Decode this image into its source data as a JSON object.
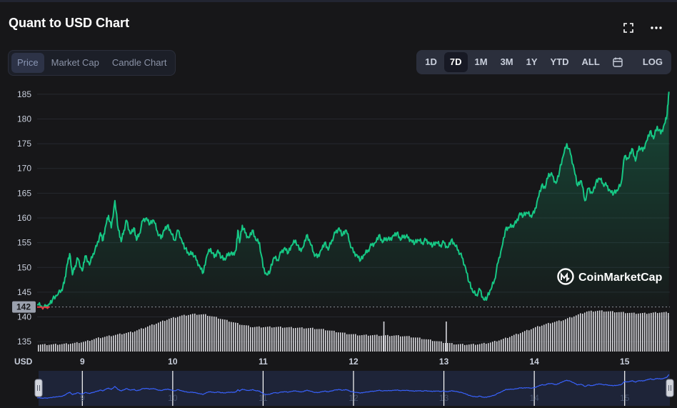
{
  "header": {
    "title": "Quant to USD Chart",
    "fullscreen_icon": "fullscreen-icon",
    "more_icon": "more-horizontal-icon"
  },
  "tabs": [
    {
      "label": "Price",
      "active": true
    },
    {
      "label": "Market Cap",
      "active": false
    },
    {
      "label": "Candle Chart",
      "active": false
    }
  ],
  "ranges": [
    {
      "label": "1D",
      "active": false
    },
    {
      "label": "7D",
      "active": true
    },
    {
      "label": "1M",
      "active": false
    },
    {
      "label": "3M",
      "active": false
    },
    {
      "label": "1Y",
      "active": false
    },
    {
      "label": "YTD",
      "active": false
    },
    {
      "label": "ALL",
      "active": false
    }
  ],
  "calendar_icon": "calendar-icon",
  "log_label": "LOG",
  "watermark": "CoinMarketCap",
  "colors": {
    "up": "#16c784",
    "down": "#ea3943",
    "navigator": "#3861fb",
    "volume": "#d8d8dd",
    "background": "#171719"
  },
  "chart_data": {
    "type": "line",
    "ylabel": "USD",
    "ylim": [
      133,
      187
    ],
    "yticks": [
      135,
      140,
      145,
      150,
      155,
      160,
      165,
      170,
      175,
      180,
      185
    ],
    "xticks": [
      "9",
      "10",
      "11",
      "12",
      "13",
      "14",
      "15"
    ],
    "xlim": [
      8.5,
      15.5
    ],
    "baseline_value": 142,
    "baseline_label": "142",
    "grid": true,
    "series": [
      {
        "values": [
          [
            8.5,
            142.5
          ],
          [
            8.55,
            142.2
          ],
          [
            8.6,
            141.9
          ],
          [
            8.63,
            142.6
          ],
          [
            8.67,
            143.5
          ],
          [
            8.72,
            144.3
          ],
          [
            8.77,
            145.5
          ],
          [
            8.8,
            146.8
          ],
          [
            8.83,
            150.5
          ],
          [
            8.86,
            152.8
          ],
          [
            8.89,
            148.5
          ],
          [
            8.92,
            150.3
          ],
          [
            8.95,
            151.8
          ],
          [
            9.0,
            149.3
          ],
          [
            9.03,
            152.3
          ],
          [
            9.08,
            150.5
          ],
          [
            9.12,
            152.8
          ],
          [
            9.16,
            154.3
          ],
          [
            9.2,
            157.0
          ],
          [
            9.23,
            155.5
          ],
          [
            9.26,
            158.5
          ],
          [
            9.29,
            160.5
          ],
          [
            9.32,
            158.0
          ],
          [
            9.36,
            163.5
          ],
          [
            9.4,
            157.5
          ],
          [
            9.43,
            155.2
          ],
          [
            9.46,
            157.5
          ],
          [
            9.49,
            159.5
          ],
          [
            9.53,
            156.8
          ],
          [
            9.57,
            158.0
          ],
          [
            9.6,
            155.5
          ],
          [
            9.63,
            156.8
          ],
          [
            9.67,
            159.5
          ],
          [
            9.71,
            160.0
          ],
          [
            9.75,
            158.8
          ],
          [
            9.79,
            159.5
          ],
          [
            9.83,
            157.3
          ],
          [
            9.87,
            155.8
          ],
          [
            9.9,
            157.5
          ],
          [
            9.94,
            158.5
          ],
          [
            9.98,
            157.0
          ],
          [
            10.02,
            155.5
          ],
          [
            10.06,
            157.5
          ],
          [
            10.1,
            155.5
          ],
          [
            10.14,
            153.8
          ],
          [
            10.18,
            152.5
          ],
          [
            10.22,
            153.0
          ],
          [
            10.26,
            151.5
          ],
          [
            10.3,
            150.2
          ],
          [
            10.34,
            149.0
          ],
          [
            10.38,
            152.5
          ],
          [
            10.42,
            153.8
          ],
          [
            10.46,
            152.0
          ],
          [
            10.5,
            153.5
          ],
          [
            10.54,
            152.0
          ],
          [
            10.58,
            151.5
          ],
          [
            10.62,
            153.0
          ],
          [
            10.66,
            152.5
          ],
          [
            10.7,
            153.5
          ],
          [
            10.72,
            157.5
          ],
          [
            10.74,
            155.0
          ],
          [
            10.77,
            158.5
          ],
          [
            10.8,
            157.0
          ],
          [
            10.84,
            156.0
          ],
          [
            10.88,
            157.5
          ],
          [
            10.92,
            155.5
          ],
          [
            10.96,
            155.0
          ],
          [
            11.0,
            150.0
          ],
          [
            11.04,
            148.5
          ],
          [
            11.08,
            149.5
          ],
          [
            11.12,
            152.0
          ],
          [
            11.16,
            151.5
          ],
          [
            11.2,
            153.0
          ],
          [
            11.24,
            154.0
          ],
          [
            11.28,
            153.0
          ],
          [
            11.32,
            154.5
          ],
          [
            11.36,
            155.5
          ],
          [
            11.4,
            153.5
          ],
          [
            11.44,
            154.0
          ],
          [
            11.48,
            156.5
          ],
          [
            11.52,
            155.0
          ],
          [
            11.56,
            153.0
          ],
          [
            11.6,
            152.0
          ],
          [
            11.64,
            153.5
          ],
          [
            11.68,
            155.0
          ],
          [
            11.72,
            153.5
          ],
          [
            11.76,
            155.5
          ],
          [
            11.8,
            157.0
          ],
          [
            11.84,
            158.0
          ],
          [
            11.88,
            156.5
          ],
          [
            11.92,
            157.5
          ],
          [
            11.96,
            155.0
          ],
          [
            12.0,
            153.0
          ],
          [
            12.04,
            152.5
          ],
          [
            12.08,
            151.5
          ],
          [
            12.12,
            152.5
          ],
          [
            12.16,
            153.5
          ],
          [
            12.2,
            154.5
          ],
          [
            12.24,
            155.0
          ],
          [
            12.28,
            156.5
          ],
          [
            12.32,
            155.0
          ],
          [
            12.36,
            156.0
          ],
          [
            12.4,
            155.5
          ],
          [
            12.44,
            156.5
          ],
          [
            12.48,
            157.0
          ],
          [
            12.52,
            155.5
          ],
          [
            12.56,
            156.5
          ],
          [
            12.6,
            156.0
          ],
          [
            12.64,
            155.5
          ],
          [
            12.68,
            155.0
          ],
          [
            12.72,
            155.5
          ],
          [
            12.76,
            155.0
          ],
          [
            12.8,
            155.5
          ],
          [
            12.84,
            155.0
          ],
          [
            12.88,
            154.5
          ],
          [
            12.92,
            155.0
          ],
          [
            12.96,
            154.5
          ],
          [
            13.0,
            155.0
          ],
          [
            13.04,
            154.0
          ],
          [
            13.08,
            155.5
          ],
          [
            13.12,
            154.5
          ],
          [
            13.16,
            153.5
          ],
          [
            13.2,
            152.0
          ],
          [
            13.24,
            150.0
          ],
          [
            13.28,
            147.0
          ],
          [
            13.32,
            145.0
          ],
          [
            13.36,
            144.5
          ],
          [
            13.4,
            145.5
          ],
          [
            13.44,
            143.5
          ],
          [
            13.48,
            144.0
          ],
          [
            13.52,
            145.5
          ],
          [
            13.56,
            147.5
          ],
          [
            13.6,
            151.0
          ],
          [
            13.64,
            154.0
          ],
          [
            13.68,
            157.5
          ],
          [
            13.72,
            158.0
          ],
          [
            13.76,
            158.5
          ],
          [
            13.8,
            159.0
          ],
          [
            13.84,
            161.0
          ],
          [
            13.88,
            160.5
          ],
          [
            13.92,
            161.0
          ],
          [
            13.96,
            160.5
          ],
          [
            14.0,
            161.0
          ],
          [
            14.04,
            164.0
          ],
          [
            14.08,
            166.5
          ],
          [
            14.12,
            166.0
          ],
          [
            14.16,
            169.0
          ],
          [
            14.2,
            168.5
          ],
          [
            14.24,
            167.0
          ],
          [
            14.28,
            169.5
          ],
          [
            14.32,
            172.5
          ],
          [
            14.36,
            175.0
          ],
          [
            14.4,
            173.0
          ],
          [
            14.44,
            170.0
          ],
          [
            14.48,
            166.5
          ],
          [
            14.52,
            167.5
          ],
          [
            14.56,
            163.5
          ],
          [
            14.6,
            166.0
          ],
          [
            14.64,
            165.0
          ],
          [
            14.68,
            167.0
          ],
          [
            14.72,
            168.0
          ],
          [
            14.76,
            167.0
          ],
          [
            14.8,
            166.5
          ],
          [
            14.84,
            165.5
          ],
          [
            14.88,
            165.0
          ],
          [
            14.92,
            165.5
          ],
          [
            14.96,
            167.0
          ],
          [
            15.0,
            172.5
          ],
          [
            15.04,
            172.0
          ],
          [
            15.08,
            174.0
          ],
          [
            15.12,
            171.5
          ],
          [
            15.16,
            174.5
          ],
          [
            15.2,
            173.5
          ],
          [
            15.24,
            175.5
          ],
          [
            15.28,
            177.5
          ],
          [
            15.32,
            176.0
          ],
          [
            15.36,
            178.5
          ],
          [
            15.4,
            177.0
          ],
          [
            15.44,
            179.0
          ],
          [
            15.47,
            181.0
          ],
          [
            15.49,
            185.5
          ]
        ]
      }
    ],
    "volume": {
      "x_start": 8.5,
      "x_end": 15.5,
      "samples": [
        0.15,
        0.15,
        0.16,
        0.18,
        0.22,
        0.3,
        0.35,
        0.4,
        0.45,
        0.55,
        0.65,
        0.75,
        0.82,
        0.86,
        0.85,
        0.78,
        0.7,
        0.62,
        0.56,
        0.56,
        0.56,
        0.55,
        0.54,
        0.53,
        0.5,
        0.45,
        0.4,
        0.37,
        0.37,
        0.36,
        0.36,
        0.34,
        0.3,
        0.25,
        0.2,
        0.16,
        0.15,
        0.16,
        0.2,
        0.28,
        0.38,
        0.48,
        0.58,
        0.66,
        0.72,
        0.82,
        0.92,
        0.94,
        0.92,
        0.9,
        0.88,
        0.88,
        0.9,
        0.9
      ],
      "spikes": [
        [
          12.33,
          0.7
        ],
        [
          13.02,
          0.7
        ]
      ]
    },
    "navigator": {
      "xticks": [
        "9",
        "10",
        "11",
        "12",
        "13",
        "14",
        "15"
      ]
    }
  }
}
